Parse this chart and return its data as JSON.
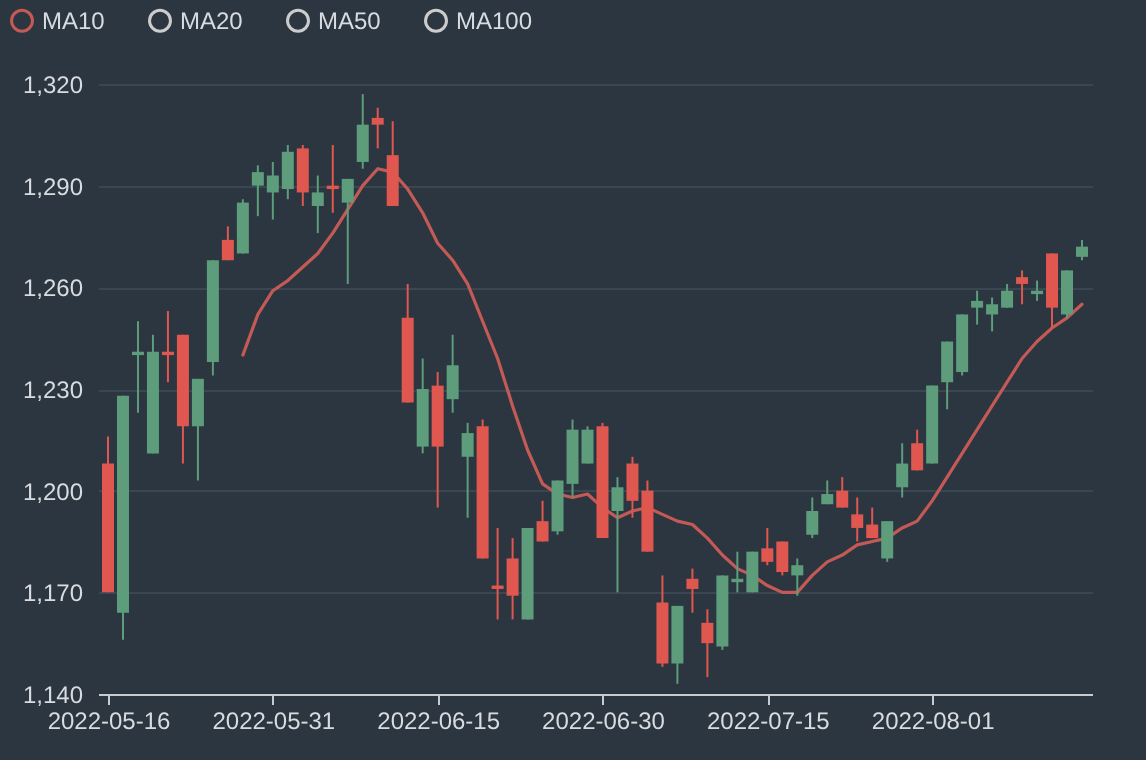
{
  "chart_data": {
    "type": "candlestick",
    "categories": [
      "2022-05-16",
      null,
      null,
      null,
      null,
      null,
      null,
      null,
      null,
      null,
      null,
      "2022-05-31",
      null,
      null,
      null,
      null,
      null,
      null,
      null,
      null,
      null,
      null,
      "2022-06-15",
      null,
      null,
      null,
      null,
      null,
      null,
      null,
      null,
      null,
      null,
      "2022-06-30",
      null,
      null,
      null,
      null,
      null,
      null,
      null,
      null,
      null,
      null,
      "2022-07-15",
      null,
      null,
      null,
      null,
      null,
      null,
      null,
      null,
      null,
      null,
      "2022-08-01",
      null,
      null,
      null,
      null,
      null,
      null,
      null,
      null,
      null,
      null
    ],
    "ohlc": [
      [
        1208,
        1216,
        1170,
        1170
      ],
      [
        1164,
        1228,
        1156,
        1228
      ],
      [
        1240,
        1250,
        1223,
        1241
      ],
      [
        1211,
        1246,
        1211,
        1241
      ],
      [
        1241,
        1253,
        1232,
        1240
      ],
      [
        1246,
        1246,
        1208,
        1219
      ],
      [
        1219,
        1233,
        1203,
        1233
      ],
      [
        1238,
        1268,
        1234,
        1268
      ],
      [
        1274,
        1278,
        1268,
        1268
      ],
      [
        1270,
        1286,
        1270,
        1285
      ],
      [
        1290,
        1296,
        1281,
        1294
      ],
      [
        1288,
        1297,
        1280,
        1293
      ],
      [
        1289,
        1302,
        1286,
        1300
      ],
      [
        1301,
        1302,
        1284,
        1288
      ],
      [
        1284,
        1293,
        1276,
        1288
      ],
      [
        1290,
        1302,
        1282,
        1289
      ],
      [
        1285,
        1292,
        1261,
        1292
      ],
      [
        1297,
        1317,
        1295,
        1308
      ],
      [
        1310,
        1313,
        1301,
        1308
      ],
      [
        1299,
        1309,
        1284,
        1284
      ],
      [
        1251,
        1261,
        1226,
        1226
      ],
      [
        1213,
        1239,
        1211,
        1230
      ],
      [
        1231,
        1235,
        1195,
        1213
      ],
      [
        1227,
        1246,
        1223,
        1237
      ],
      [
        1210,
        1220,
        1192,
        1217
      ],
      [
        1219,
        1221,
        1180,
        1180
      ],
      [
        1172,
        1189,
        1162,
        1171
      ],
      [
        1180,
        1186,
        1162,
        1169
      ],
      [
        1162,
        1189,
        1162,
        1189
      ],
      [
        1191,
        1197,
        1185,
        1185
      ],
      [
        1188,
        1203,
        1187,
        1203
      ],
      [
        1202,
        1221,
        1198,
        1218
      ],
      [
        1208,
        1219,
        1208,
        1218
      ],
      [
        1219,
        1220,
        1186,
        1186
      ],
      [
        1194,
        1204,
        1170,
        1201
      ],
      [
        1208,
        1210,
        1192,
        1197
      ],
      [
        1200,
        1203,
        1182,
        1182
      ],
      [
        1167,
        1175,
        1148,
        1149
      ],
      [
        1149,
        1166,
        1143,
        1166
      ],
      [
        1174,
        1177,
        1164,
        1171
      ],
      [
        1161,
        1165,
        1145,
        1155
      ],
      [
        1154,
        1175,
        1153,
        1175
      ],
      [
        1173,
        1182,
        1170,
        1174
      ],
      [
        1170,
        1182,
        1170,
        1182
      ],
      [
        1183,
        1189,
        1178,
        1179
      ],
      [
        1185,
        1185,
        1175,
        1176
      ],
      [
        1175,
        1180,
        1169,
        1178
      ],
      [
        1187,
        1198,
        1186,
        1194
      ],
      [
        1196,
        1203,
        1196,
        1199
      ],
      [
        1200,
        1204,
        1195,
        1195
      ],
      [
        1193,
        1198,
        1185,
        1189
      ],
      [
        1190,
        1195,
        1186,
        1186
      ],
      [
        1180,
        1191,
        1179,
        1191
      ],
      [
        1201,
        1214,
        1198,
        1208
      ],
      [
        1214,
        1218,
        1206,
        1206
      ],
      [
        1208,
        1231,
        1208,
        1231
      ],
      [
        1232,
        1244,
        1224,
        1244
      ],
      [
        1235,
        1252,
        1234,
        1252
      ],
      [
        1254,
        1259,
        1249,
        1256
      ],
      [
        1252,
        1257,
        1247,
        1255
      ],
      [
        1254,
        1261,
        1254,
        1259
      ],
      [
        1263,
        1265,
        1255,
        1261
      ],
      [
        1258,
        1262,
        1256,
        1259
      ],
      [
        1270,
        1270,
        1248,
        1254
      ],
      [
        1252,
        1265,
        1251,
        1265
      ],
      [
        1269,
        1274,
        1268,
        1272
      ]
    ],
    "colors": [
      "#e0574f",
      "#5d9d7b",
      "#5d9d7b",
      "#5d9d7b",
      "#e0574f",
      "#e0574f",
      "#5d9d7b",
      "#5d9d7b",
      "#e0574f",
      "#5d9d7b",
      "#5d9d7b",
      "#5d9d7b",
      "#5d9d7b",
      "#e0574f",
      "#5d9d7b",
      "#e0574f",
      "#5d9d7b",
      "#5d9d7b",
      "#e0574f",
      "#e0574f",
      "#e0574f",
      "#5d9d7b",
      "#e0574f",
      "#5d9d7b",
      "#5d9d7b",
      "#e0574f",
      "#e0574f",
      "#e0574f",
      "#5d9d7b",
      "#e0574f",
      "#5d9d7b",
      "#5d9d7b",
      "#5d9d7b",
      "#e0574f",
      "#5d9d7b",
      "#e0574f",
      "#e0574f",
      "#e0574f",
      "#5d9d7b",
      "#e0574f",
      "#e0574f",
      "#5d9d7b",
      "#5d9d7b",
      "#5d9d7b",
      "#e0574f",
      "#e0574f",
      "#5d9d7b",
      "#5d9d7b",
      "#5d9d7b",
      "#e0574f",
      "#e0574f",
      "#e0574f",
      "#5d9d7b",
      "#5d9d7b",
      "#e0574f",
      "#5d9d7b",
      "#5d9d7b",
      "#5d9d7b",
      "#5d9d7b",
      "#5d9d7b",
      "#5d9d7b",
      "#e0574f",
      "#5d9d7b",
      "#e0574f",
      "#5d9d7b",
      "#5d9d7b"
    ],
    "series": [
      {
        "name": "MA10",
        "type": "line",
        "color": "#c45a55",
        "values": [
          null,
          null,
          null,
          null,
          null,
          null,
          null,
          null,
          null,
          1240,
          1252,
          1259,
          1262,
          1266,
          1270,
          1276,
          1283,
          1290,
          1295,
          1294,
          1289,
          1282,
          1273,
          1268,
          1261,
          1250,
          1239,
          1225,
          1212,
          1202,
          1199,
          1198,
          1199,
          1195,
          1192,
          1194,
          1195,
          1193,
          1191,
          1190,
          1186,
          1181,
          1177,
          1175,
          1172,
          1170,
          1170,
          1175,
          1179,
          1181,
          1184,
          1185,
          1186,
          1189,
          1191,
          1197,
          1204,
          1211,
          1218,
          1225,
          1232,
          1239,
          1244,
          1248,
          1251,
          1255
        ]
      },
      {
        "name": "MA20",
        "type": "line",
        "color": "#cccccc",
        "values": [
          null,
          null,
          null,
          null,
          null,
          null,
          null,
          null,
          null,
          null,
          null,
          null,
          null,
          null,
          null,
          null,
          null,
          null,
          null,
          null,
          null,
          null,
          null,
          null,
          null,
          null,
          null,
          null,
          null,
          null,
          null,
          null,
          null,
          null,
          null,
          null,
          null,
          null,
          null,
          null,
          null,
          null,
          null,
          null,
          null,
          null,
          null,
          null,
          null,
          null,
          null,
          null,
          null,
          null,
          null,
          null,
          null,
          null,
          null,
          null,
          null,
          null,
          null,
          null,
          null,
          null
        ]
      },
      {
        "name": "MA50",
        "type": "line",
        "color": "#cccccc",
        "values": [
          null,
          null,
          null,
          null,
          null,
          null,
          null,
          null,
          null,
          null,
          null,
          null,
          null,
          null,
          null,
          null,
          null,
          null,
          null,
          null,
          null,
          null,
          null,
          null,
          null,
          null,
          null,
          null,
          null,
          null,
          null,
          null,
          null,
          null,
          null,
          null,
          null,
          null,
          null,
          null,
          null,
          null,
          null,
          null,
          null,
          null,
          null,
          null,
          null,
          null,
          null,
          null,
          null,
          null,
          null,
          null,
          null,
          null,
          null,
          null,
          null,
          null,
          null,
          null,
          null,
          null
        ]
      },
      {
        "name": "MA100",
        "type": "line",
        "color": "#cccccc",
        "values": [
          null,
          null,
          null,
          null,
          null,
          null,
          null,
          null,
          null,
          null,
          null,
          null,
          null,
          null,
          null,
          null,
          null,
          null,
          null,
          null,
          null,
          null,
          null,
          null,
          null,
          null,
          null,
          null,
          null,
          null,
          null,
          null,
          null,
          null,
          null,
          null,
          null,
          null,
          null,
          null,
          null,
          null,
          null,
          null,
          null,
          null,
          null,
          null,
          null,
          null,
          null,
          null,
          null,
          null,
          null,
          null,
          null,
          null,
          null,
          null,
          null,
          null,
          null,
          null,
          null,
          null
        ]
      }
    ],
    "ylim": [
      1140,
      1320
    ],
    "yticks": [
      {
        "value": 1140,
        "label": "1,140"
      },
      {
        "value": 1170,
        "label": "1,170"
      },
      {
        "value": 1200,
        "label": "1,200"
      },
      {
        "value": 1230,
        "label": "1,230"
      },
      {
        "value": 1260,
        "label": "1,260"
      },
      {
        "value": 1290,
        "label": "1,290"
      },
      {
        "value": 1320,
        "label": "1,320"
      }
    ],
    "grid": "y",
    "legend": "top left",
    "marker": "none",
    "line_style": "solid"
  }
}
